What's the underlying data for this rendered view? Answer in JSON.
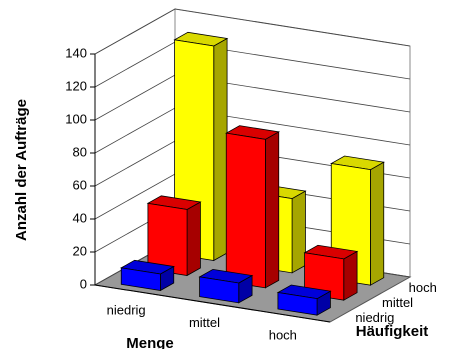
{
  "chart_data": {
    "type": "bar3d",
    "y_label": "Anzahl der Aufträge",
    "x_label": "Menge",
    "z_label": "Häufigkeit",
    "categories": [
      "niedrig",
      "mittel",
      "hoch"
    ],
    "series": [
      {
        "name": "niedrig",
        "color": "#0000ff",
        "values": [
          10,
          12,
          10
        ]
      },
      {
        "name": "mittel",
        "color": "#ff0000",
        "values": [
          40,
          90,
          25
        ]
      },
      {
        "name": "hoch",
        "color": "#ffff00",
        "values": [
          130,
          45,
          70
        ]
      }
    ],
    "ylim": [
      0,
      140
    ],
    "yticks": [
      0,
      20,
      40,
      60,
      80,
      100,
      120,
      140
    ],
    "grid": true
  }
}
